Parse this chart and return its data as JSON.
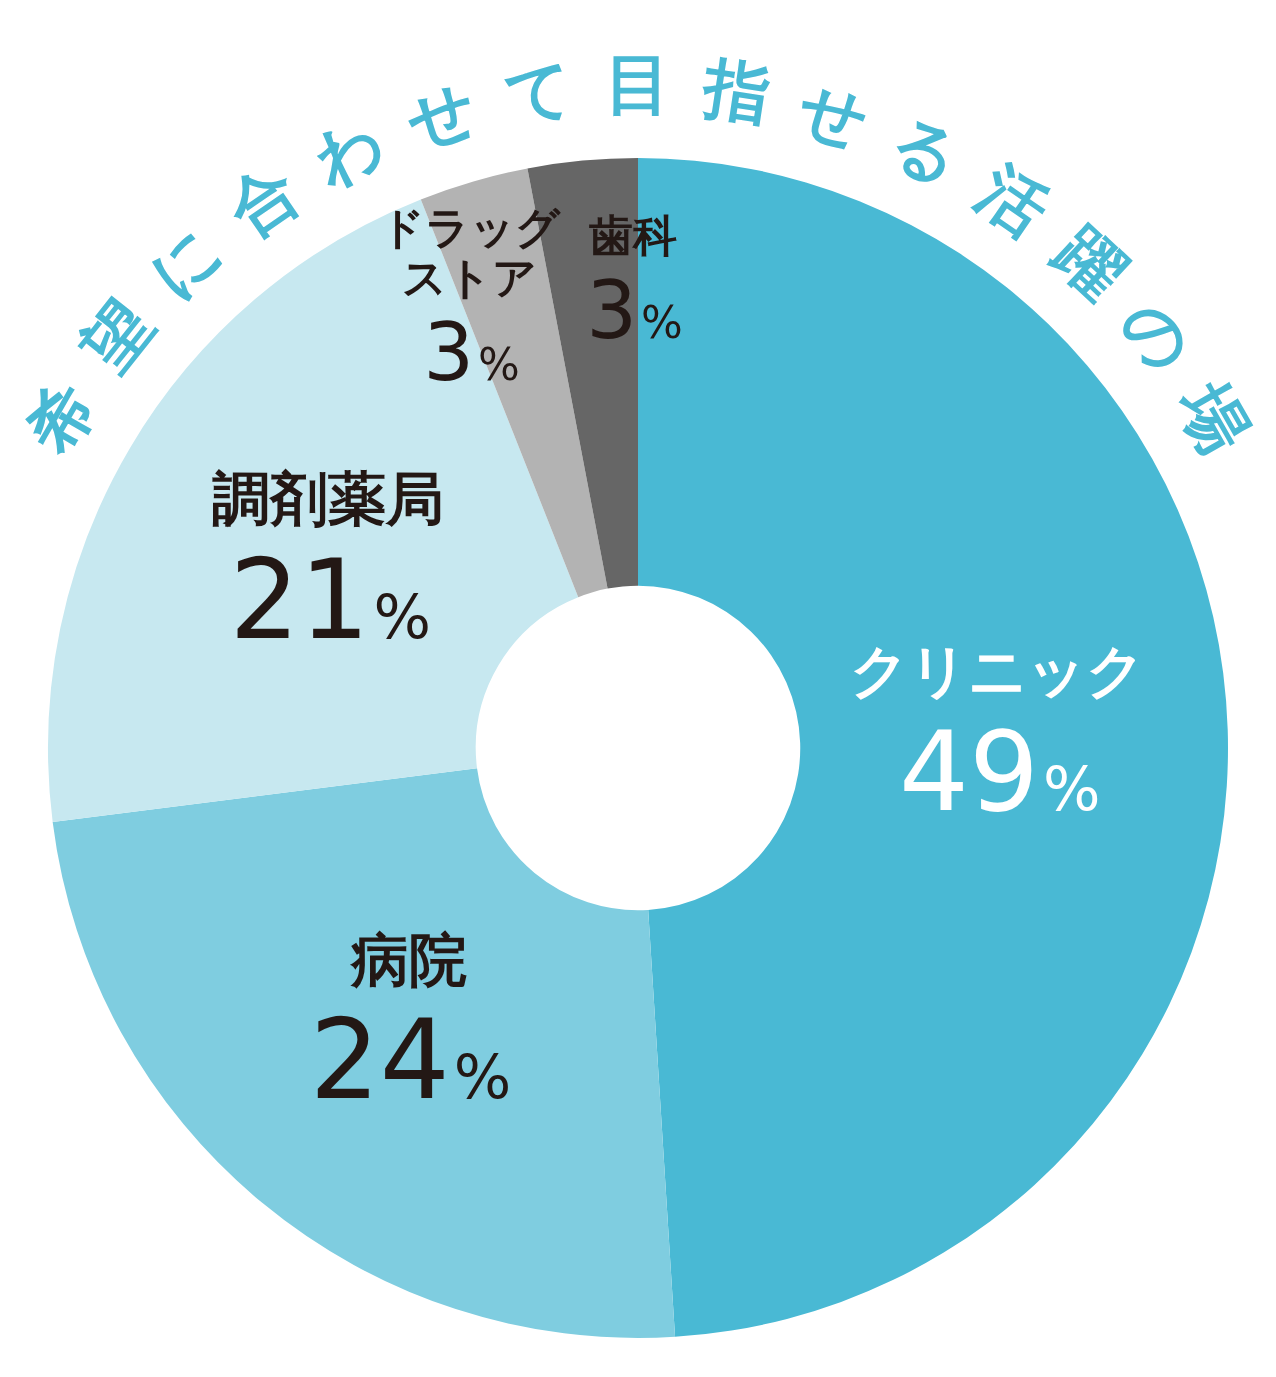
{
  "chart_data": {
    "type": "donut",
    "title": "希望に合わせて目指せる活躍の場",
    "categories": [
      "クリニック",
      "病院",
      "調剤薬局",
      "ドラッグストア",
      "歯科"
    ],
    "values": [
      49,
      24,
      21,
      3,
      3
    ],
    "colors": [
      "#49b9d4",
      "#7fcde0",
      "#c7e8f0",
      "#b3b3b3",
      "#666666"
    ],
    "value_labels": [
      "49%",
      "24%",
      "21%",
      "3%",
      "3%"
    ],
    "legend": false
  }
}
